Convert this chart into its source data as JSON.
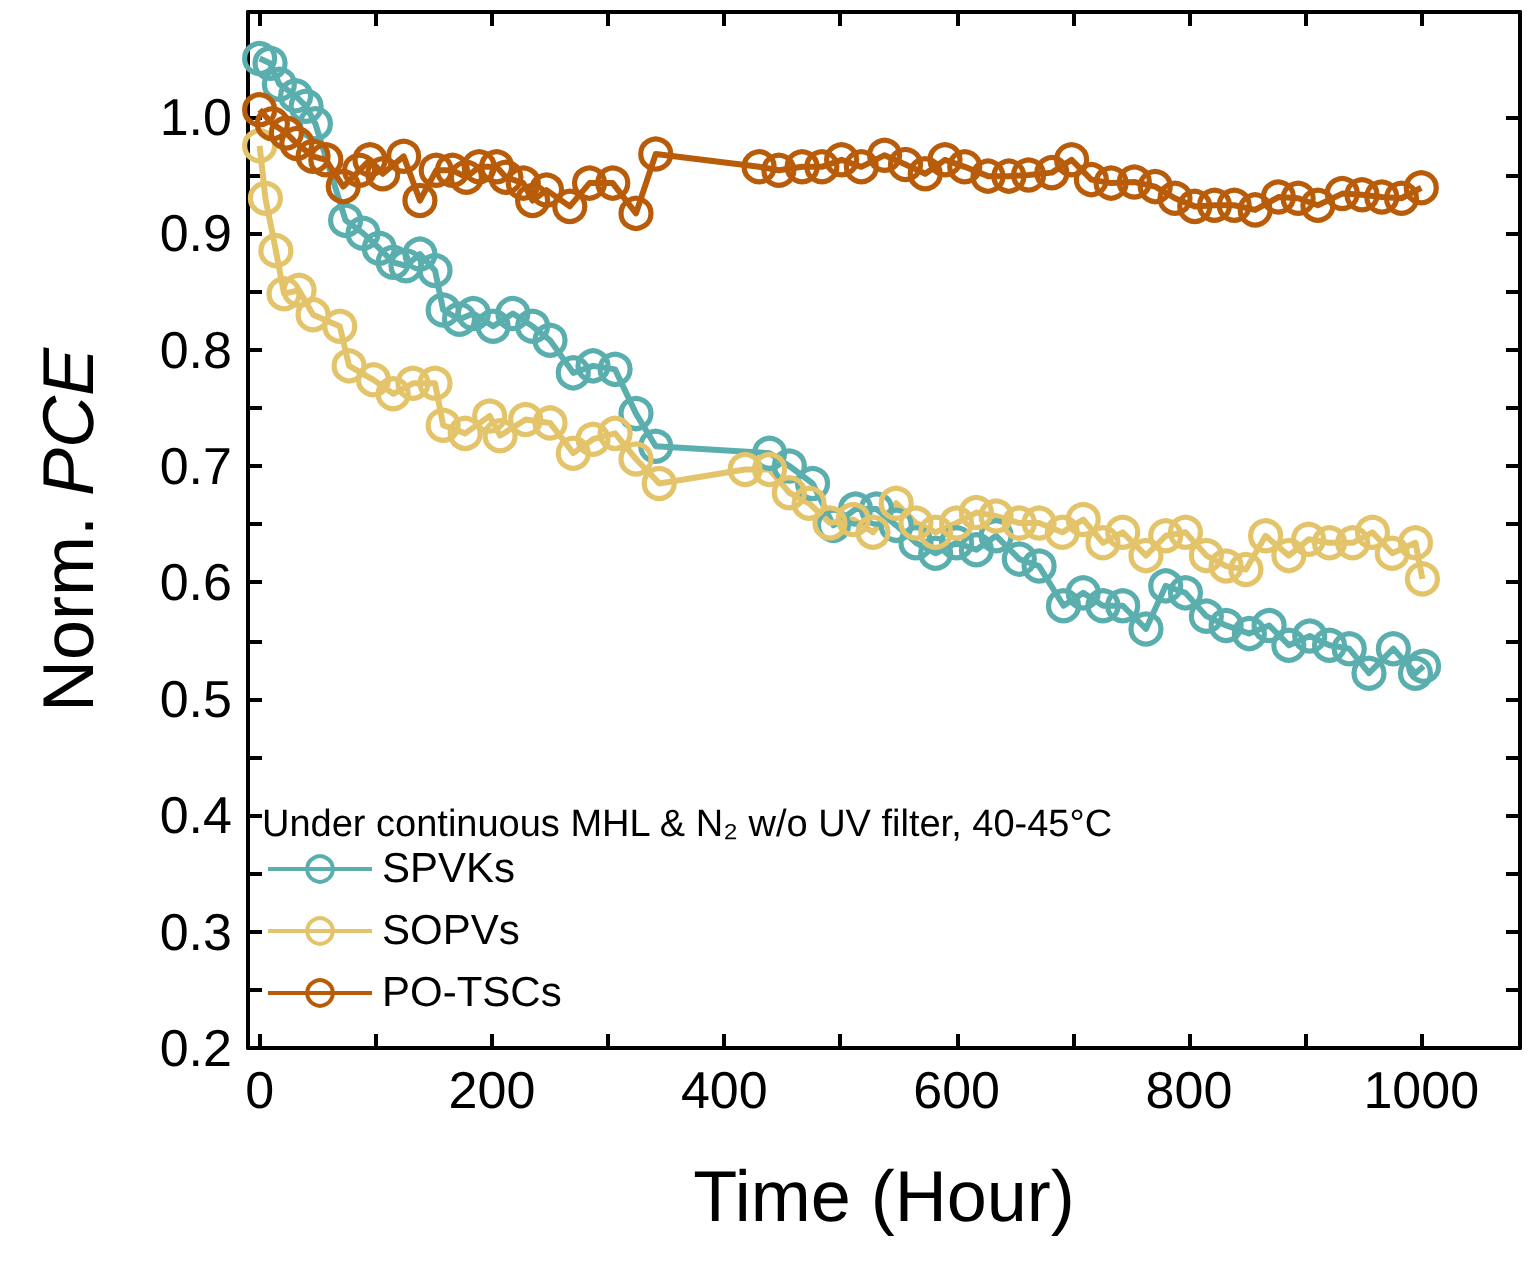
{
  "chart_data": {
    "type": "line",
    "xlabel": "Time (Hour)",
    "ylabel": "Norm. PCE",
    "legend_title": "Under continuous MHL & N₂ w/o UV filter, 40-45°C",
    "legend": "bottom left",
    "marker": "circle",
    "grid": false,
    "xlim": [
      -10,
      1085
    ],
    "xticks": [
      0,
      {
        "value": 100,
        "label": null
      },
      200,
      {
        "value": 300,
        "label": null
      },
      400,
      {
        "value": 500,
        "label": null
      },
      600,
      {
        "value": 700,
        "label": null
      },
      800,
      {
        "value": 900,
        "label": null
      },
      1000
    ],
    "ylim": [
      0.2,
      1.09
    ],
    "yticks": [
      0.2,
      {
        "value": 0.25,
        "label": null
      },
      0.3,
      {
        "value": 0.35,
        "label": null
      },
      0.4,
      {
        "value": 0.45,
        "label": null
      },
      0.5,
      {
        "value": 0.55,
        "label": null
      },
      0.6,
      {
        "value": 0.65,
        "label": null
      },
      0.7,
      {
        "value": 0.75,
        "label": null
      },
      0.8,
      {
        "value": 0.85,
        "label": null
      },
      0.9,
      {
        "value": 0.95,
        "label": null
      },
      {
        "value": 1,
        "label": "1.0"
      }
    ],
    "series": [
      {
        "name": "SPVKs",
        "color": "#5aaeae",
        "x": [
          0,
          9,
          17,
          31,
          40,
          48,
          74,
          89,
          103,
          115,
          126,
          138,
          151,
          158,
          172,
          184,
          201,
          218,
          235,
          250,
          270,
          287,
          306,
          324,
          341,
          439,
          456,
          476,
          494,
          513,
          531,
          548,
          565,
          582,
          600,
          617,
          634,
          654,
          671,
          692,
          709,
          726,
          743,
          763,
          780,
          797,
          815,
          832,
          852,
          869,
          886,
          904,
          921,
          938,
          955,
          976,
          995,
          1002
        ],
        "values": [
          1.05,
          1.046,
          1.028,
          1.018,
          1.009,
          0.994,
          0.911,
          0.9,
          0.887,
          0.875,
          0.872,
          0.882,
          0.868,
          0.834,
          0.826,
          0.831,
          0.82,
          0.831,
          0.82,
          0.808,
          0.78,
          0.786,
          0.783,
          0.745,
          0.717,
          0.711,
          0.7,
          0.685,
          0.649,
          0.663,
          0.663,
          0.649,
          0.634,
          0.625,
          0.634,
          0.628,
          0.64,
          0.62,
          0.614,
          0.58,
          0.591,
          0.58,
          0.58,
          0.56,
          0.597,
          0.591,
          0.571,
          0.563,
          0.556,
          0.563,
          0.546,
          0.554,
          0.546,
          0.543,
          0.522,
          0.543,
          0.522,
          0.528
        ]
      },
      {
        "name": "SOPVs",
        "color": "#e3c46a",
        "x": [
          0,
          5,
          14,
          21,
          34,
          46,
          69,
          77,
          98,
          115,
          132,
          151,
          158,
          177,
          198,
          207,
          229,
          250,
          270,
          287,
          306,
          324,
          344,
          418,
          439,
          456,
          473,
          491,
          511,
          528,
          548,
          565,
          582,
          600,
          617,
          634,
          654,
          671,
          691,
          709,
          726,
          743,
          763,
          780,
          797,
          815,
          832,
          849,
          866,
          886,
          903,
          921,
          941,
          958,
          975,
          995,
          1001
        ],
        "values": [
          0.975,
          0.93,
          0.885,
          0.848,
          0.851,
          0.83,
          0.82,
          0.786,
          0.774,
          0.762,
          0.771,
          0.771,
          0.735,
          0.728,
          0.743,
          0.726,
          0.74,
          0.737,
          0.711,
          0.723,
          0.728,
          0.706,
          0.685,
          0.697,
          0.697,
          0.677,
          0.668,
          0.651,
          0.654,
          0.643,
          0.668,
          0.651,
          0.643,
          0.651,
          0.66,
          0.657,
          0.651,
          0.651,
          0.643,
          0.654,
          0.634,
          0.643,
          0.623,
          0.64,
          0.643,
          0.623,
          0.614,
          0.611,
          0.64,
          0.623,
          0.637,
          0.634,
          0.634,
          0.643,
          0.625,
          0.634,
          0.603
        ]
      },
      {
        "name": "PO-TSCs",
        "color": "#b85c0a",
        "x": [
          0,
          11,
          23,
          32,
          46,
          57,
          72,
          86,
          95,
          106,
          124,
          138,
          152,
          166,
          178,
          189,
          204,
          212,
          227,
          235,
          247,
          267,
          284,
          304,
          324,
          341,
          430,
          447,
          467,
          484,
          501,
          518,
          538,
          556,
          573,
          590,
          607,
          627,
          645,
          662,
          682,
          699,
          716,
          733,
          753,
          771,
          788,
          805,
          822,
          839,
          857,
          877,
          894,
          911,
          932,
          949,
          966,
          983,
          1000
        ],
        "values": [
          1.006,
          0.994,
          0.986,
          0.977,
          0.966,
          0.963,
          0.94,
          0.954,
          0.963,
          0.951,
          0.966,
          0.928,
          0.954,
          0.954,
          0.948,
          0.957,
          0.957,
          0.948,
          0.943,
          0.928,
          0.937,
          0.923,
          0.943,
          0.943,
          0.917,
          0.968,
          0.957,
          0.954,
          0.957,
          0.957,
          0.963,
          0.957,
          0.967,
          0.959,
          0.951,
          0.963,
          0.957,
          0.949,
          0.949,
          0.95,
          0.952,
          0.963,
          0.946,
          0.943,
          0.944,
          0.94,
          0.93,
          0.923,
          0.924,
          0.924,
          0.92,
          0.931,
          0.93,
          0.924,
          0.934,
          0.933,
          0.931,
          0.93,
          0.939
        ]
      }
    ]
  }
}
